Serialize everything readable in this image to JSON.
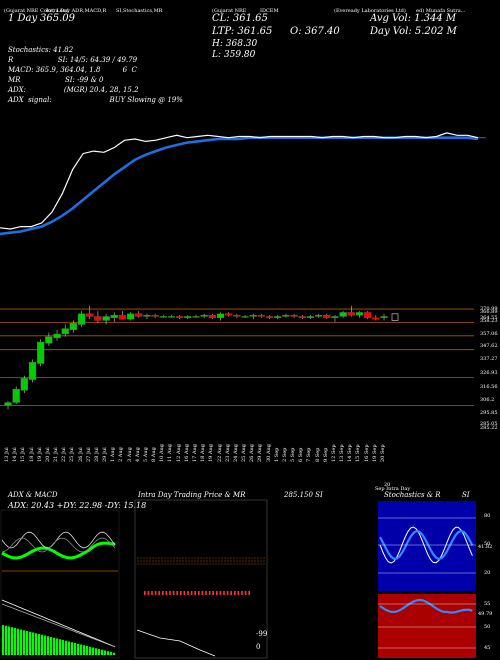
{
  "header": {
    "top_line": [
      "(Gujarat NRE Coke) Lead",
      "Intra Day ADR,MACD,R",
      "SI,Stochastics,MR",
      "(Gujarat NRE",
      "IDCEM",
      "(Eveready Laboratories Ltd)",
      "ed) Munafa Sutra..."
    ],
    "day_label": "1 Day",
    "day_value": "365.09",
    "cl": "CL: 361.65",
    "ltp": "LTP: 361.65",
    "o": "O: 367.40",
    "h": "H: 368.30",
    "l": "L: 359.80",
    "avg_vol": "Avg Vol: 1.344 M",
    "day_vol": "Day Vol: 5.202 M",
    "stochastics": "Stochastics: 41.82",
    "r_line": "R                    SI: 14/5: 64.39 / 49.79",
    "macd": "MACD: 365.9, 364.04, 1.8          6  C",
    "mr": "MR                    SI: -99 & 0",
    "adx": "ADX:                 (MGR) 20.4, 28, 15.2",
    "adx_signal": "ADX  signal:                          BUY Slowing @ 19%"
  },
  "price_axis": [
    "370.99",
    "366.89",
    "364.55",
    "358.23",
    "357.06",
    "347.62",
    "337.27",
    "326.93",
    "316.56",
    "306.2",
    "295.85",
    "285.05",
    "285.22"
  ],
  "x_dates": [
    "13 Jul",
    "14 Jul",
    "15 Jul",
    "18 Jul",
    "19 Jul",
    "20 Jul",
    "21 Jul",
    "22 Jul",
    "25 Jul",
    "26 Jul",
    "27 Jul",
    "28 Jul",
    "29 Jul",
    "1 Aug",
    "2 Aug",
    "3 Aug",
    "4 Aug",
    "5 Aug",
    "8 Aug",
    "10 Aug",
    "11 Aug",
    "12 Aug",
    "16 Aug",
    "17 Aug",
    "18 Aug",
    "19 Aug",
    "22 Aug",
    "23 Aug",
    "24 Aug",
    "25 Aug",
    "26 Aug",
    "29 Aug",
    "30 Aug",
    "1 Sep",
    "2 Sep",
    "5 Sep",
    "6 Sep",
    "7 Sep",
    "8 Sep",
    "9 Sep",
    "12 Sep",
    "13 Sep",
    "14 Sep",
    "15 Sep",
    "16 Sep",
    "19 Sep",
    "20 Sep"
  ],
  "panels": {
    "adx_title": "ADX  & MACD",
    "adx_values": "ADX: 20.43  +DY: 22.98  -DY: 15.18",
    "intraday_title": "Intra  Day Trading Price  & MR",
    "intraday_value": "285.150  SI",
    "intraday_minus99": "-99",
    "intraday_zero": "0",
    "stoch_title": "Stochastics & R",
    "stoch_si": "SI",
    "stoch_axis": [
      "80",
      "50",
      "20"
    ],
    "stoch_value": "41.82",
    "rsi_axis": [
      "55",
      "50",
      "45"
    ],
    "rsi_value": "49.79",
    "bottom_date_label": "20",
    "bottom_sub_label": "Sep Intra Day"
  },
  "colors": {
    "background": "#000000",
    "price_line": "#ffffff",
    "ma_line": "#1f6fe0",
    "candle_up": "#00cc00",
    "candle_down": "#ff0000",
    "level_line": "#b35900",
    "adx_green": "#00ff00",
    "panel_blue": "#0000aa",
    "panel_red": "#aa0000"
  },
  "chart_data": [
    {
      "type": "line",
      "series": [
        {
          "values": [
            290,
            289,
            291,
            291,
            294,
            303,
            318,
            338,
            351,
            353,
            352,
            356,
            362,
            363,
            361,
            362,
            364,
            366,
            364,
            365,
            366,
            365,
            364,
            365,
            365,
            364,
            365,
            365,
            365,
            365,
            365,
            364,
            365,
            365,
            364,
            365,
            365,
            364,
            364,
            365,
            365,
            364,
            365,
            368,
            366,
            366,
            364
          ]
        },
        {
          "values": [
            285,
            286,
            287,
            289,
            291,
            295,
            300,
            306,
            313,
            320,
            327,
            334,
            340,
            346,
            350,
            353,
            356,
            358,
            360,
            361,
            362,
            363,
            363,
            363,
            364,
            364,
            364,
            364,
            364,
            364,
            364,
            364,
            364,
            364,
            364,
            364,
            364,
            364,
            364,
            364,
            364,
            364,
            364,
            364,
            364,
            364,
            363
          ]
        }
      ]
    },
    {
      "type": "bar",
      "ohlc": [
        [
          296,
          299,
          293,
          298
        ],
        [
          298,
          310,
          297,
          308
        ],
        [
          307,
          318,
          305,
          316
        ],
        [
          315,
          330,
          313,
          328
        ],
        [
          327,
          345,
          325,
          343
        ],
        [
          342,
          350,
          340,
          347
        ],
        [
          346,
          352,
          344,
          349
        ],
        [
          349,
          356,
          347,
          353
        ],
        [
          352,
          359,
          350,
          357
        ],
        [
          356,
          366,
          354,
          364
        ],
        [
          364,
          370,
          360,
          362
        ],
        [
          362,
          366,
          357,
          359
        ],
        [
          359,
          364,
          356,
          362
        ],
        [
          361,
          365,
          358,
          363
        ],
        [
          363,
          366,
          360,
          360
        ],
        [
          360,
          365,
          359,
          364
        ],
        [
          364,
          366,
          361,
          362
        ],
        [
          362,
          364,
          360,
          363
        ],
        [
          363,
          364,
          361,
          362
        ],
        [
          362,
          363,
          361,
          362
        ],
        [
          362,
          363,
          361,
          362
        ],
        [
          362,
          363,
          360,
          361
        ],
        [
          361,
          363,
          360,
          362
        ],
        [
          362,
          363,
          361,
          362
        ],
        [
          362,
          364,
          361,
          363
        ],
        [
          363,
          364,
          360,
          361
        ],
        [
          361,
          365,
          359,
          364
        ],
        [
          364,
          365,
          362,
          363
        ],
        [
          363,
          364,
          361,
          362
        ],
        [
          362,
          363,
          361,
          362
        ],
        [
          362,
          364,
          360,
          363
        ],
        [
          363,
          364,
          361,
          362
        ],
        [
          362,
          363,
          360,
          361
        ],
        [
          361,
          363,
          360,
          362
        ],
        [
          362,
          364,
          361,
          363
        ],
        [
          363,
          364,
          361,
          362
        ],
        [
          362,
          363,
          360,
          361
        ],
        [
          361,
          363,
          360,
          362
        ],
        [
          362,
          364,
          361,
          363
        ],
        [
          363,
          364,
          360,
          361
        ],
        [
          361,
          363,
          358,
          362
        ],
        [
          362,
          366,
          361,
          365
        ],
        [
          365,
          370,
          362,
          363
        ],
        [
          363,
          366,
          361,
          365
        ],
        [
          365,
          366,
          360,
          361
        ],
        [
          361,
          363,
          359,
          360
        ],
        [
          361,
          364,
          359,
          362
        ]
      ],
      "ylim": [
        285,
        372
      ]
    }
  ]
}
